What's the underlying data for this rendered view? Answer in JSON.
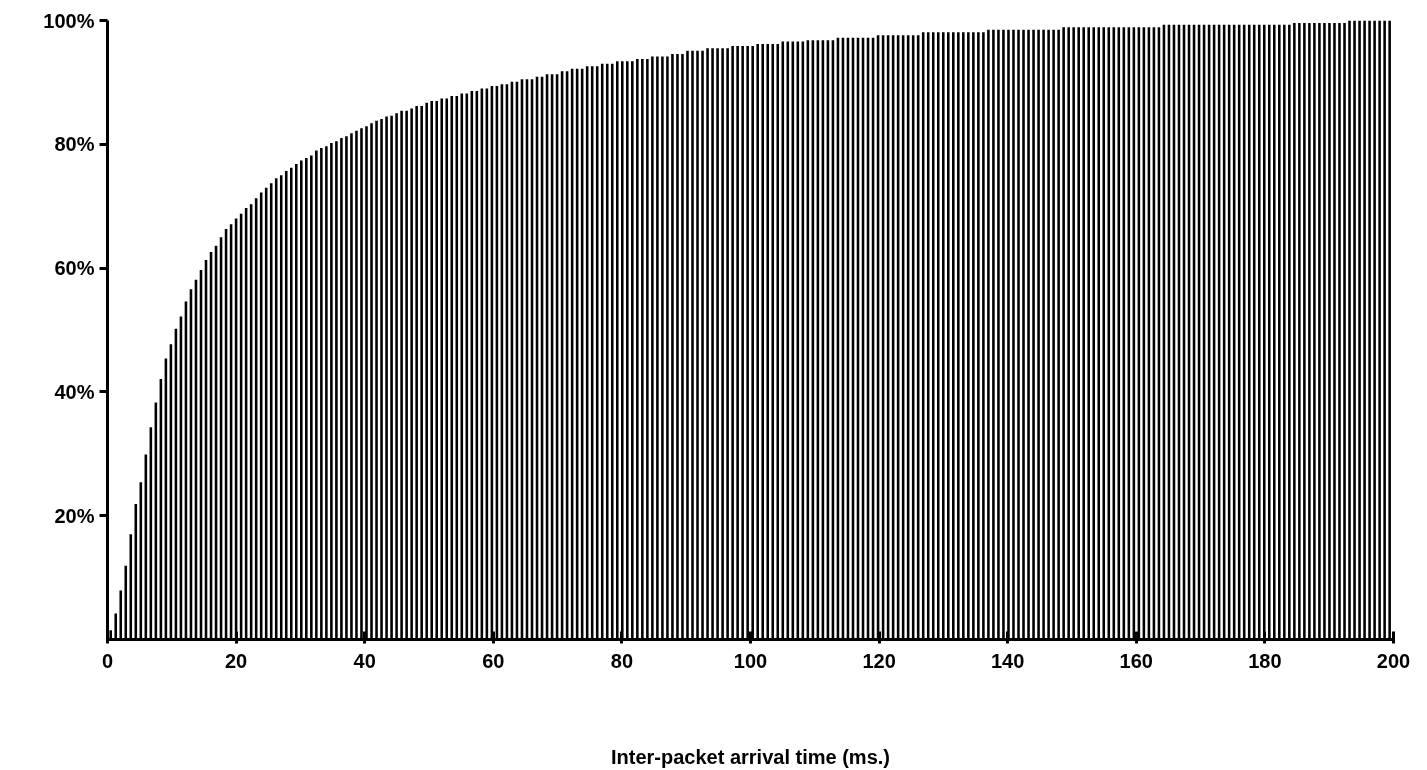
{
  "chart_data": {
    "type": "bar",
    "xlabel": "Inter-packet arrival time (ms.)",
    "color": "#000000",
    "grid": false,
    "xlim": [
      0,
      200
    ],
    "xticks": [
      0,
      20,
      40,
      60,
      80,
      100,
      120,
      140,
      160,
      180,
      200
    ],
    "ylim": [
      0,
      100
    ],
    "yticks": [
      {
        "value": 20,
        "label": "20%"
      },
      {
        "value": 40,
        "label": "40%"
      },
      {
        "value": 60,
        "label": "60%"
      },
      {
        "value": 80,
        "label": "80%"
      },
      {
        "value": 100,
        "label": "100%"
      }
    ],
    "x": [
      0.5,
      1.28,
      2.06,
      2.84,
      3.62,
      4.4,
      5.18,
      5.96,
      6.74,
      7.52,
      8.3,
      9.08,
      9.86,
      10.64,
      11.42,
      12.2,
      12.98,
      13.76,
      14.54,
      15.32,
      16.1,
      16.88,
      17.66,
      18.44,
      19.22,
      20,
      20.78,
      21.56,
      22.34,
      23.12,
      23.9,
      24.68,
      25.46,
      26.24,
      27.02,
      27.8,
      28.58,
      29.36,
      30.14,
      30.92,
      31.7,
      32.48,
      33.26,
      34.04,
      34.82,
      35.6,
      36.38,
      37.16,
      37.94,
      38.72,
      39.5,
      40.28,
      41.06,
      41.84,
      42.62,
      43.4,
      44.18,
      44.96,
      45.74,
      46.52,
      47.3,
      48.08,
      48.86,
      49.64,
      50.42,
      51.2,
      51.98,
      52.76,
      53.54,
      54.32,
      55.1,
      55.88,
      56.66,
      57.44,
      58.22,
      59,
      59.78,
      60.56,
      61.34,
      62.12,
      62.9,
      63.68,
      64.46,
      65.24,
      66.02,
      66.8,
      67.58,
      68.36,
      69.14,
      69.92,
      70.7,
      71.48,
      72.26,
      73.04,
      73.82,
      74.6,
      75.38,
      76.16,
      76.94,
      77.72,
      78.5,
      79.28,
      80.06,
      80.84,
      81.62,
      82.4,
      83.18,
      83.96,
      84.74,
      85.52,
      86.3,
      87.08,
      87.86,
      88.64,
      89.42,
      90.2,
      90.98,
      91.76,
      92.54,
      93.32,
      94.1,
      94.88,
      95.66,
      96.44,
      97.22,
      98,
      98.78,
      99.56,
      100.34,
      101.12,
      101.9,
      102.68,
      103.46,
      104.24,
      105.02,
      105.8,
      106.58,
      107.36,
      108.14,
      108.92,
      109.7,
      110.48,
      111.26,
      112.04,
      112.82,
      113.6,
      114.38,
      115.16,
      115.94,
      116.72,
      117.5,
      118.28,
      119.06,
      119.84,
      120.62,
      121.4,
      122.18,
      122.96,
      123.74,
      124.52,
      125.3,
      126.08,
      126.86,
      127.64,
      128.42,
      129.2,
      129.98,
      130.76,
      131.54,
      132.32,
      133.1,
      133.88,
      134.66,
      135.44,
      136.22,
      137,
      137.78,
      138.56,
      139.34,
      140.12,
      140.9,
      141.68,
      142.46,
      143.24,
      144.02,
      144.8,
      145.58,
      146.36,
      147.14,
      147.92,
      148.7,
      149.48,
      150.26,
      151.04,
      151.82,
      152.6,
      153.38,
      154.16,
      154.94,
      155.72,
      156.5,
      157.28,
      158.06,
      158.84,
      159.62,
      160.4,
      161.18,
      161.96,
      162.74,
      163.52,
      164.3,
      165.08,
      165.86,
      166.64,
      167.42,
      168.2,
      168.98,
      169.76,
      170.54,
      171.32,
      172.1,
      172.88,
      173.66,
      174.44,
      175.22,
      176,
      176.78,
      177.56,
      178.34,
      179.12,
      179.9,
      180.68,
      181.46,
      182.24,
      183.02,
      183.8,
      184.58,
      185.36,
      186.14,
      186.92,
      187.7,
      188.48,
      189.26,
      190.04,
      190.82,
      191.6,
      192.38,
      193.16,
      193.94,
      194.72,
      195.5,
      196.28,
      197.06,
      197.84,
      198.62,
      199.4
    ],
    "values": [
      1.5,
      4.2,
      7.9,
      11.9,
      17.0,
      21.9,
      25.4,
      29.9,
      34.3,
      38.3,
      42.1,
      45.4,
      47.7,
      50.2,
      52.2,
      54.6,
      56.6,
      58.1,
      59.7,
      61.3,
      62.6,
      63.6,
      65.0,
      66.3,
      67.1,
      68.0,
      68.8,
      69.7,
      70.3,
      71.3,
      72.2,
      73.0,
      73.7,
      74.5,
      75.0,
      75.7,
      76.2,
      76.8,
      77.4,
      77.8,
      78.2,
      79.0,
      79.4,
      79.7,
      80.2,
      80.5,
      81.0,
      81.3,
      81.8,
      82.2,
      82.6,
      82.9,
      83.4,
      83.8,
      84.1,
      84.5,
      84.6,
      85.0,
      85.4,
      85.4,
      85.8,
      86.2,
      86.2,
      86.7,
      87.0,
      87.0,
      87.4,
      87.4,
      87.8,
      87.8,
      88.2,
      88.2,
      88.6,
      88.6,
      89.0,
      89.0,
      89.4,
      89.4,
      89.7,
      89.7,
      90.1,
      90.1,
      90.5,
      90.5,
      90.5,
      90.9,
      90.9,
      91.3,
      91.3,
      91.3,
      91.8,
      91.8,
      92.2,
      92.2,
      92.2,
      92.6,
      92.6,
      92.6,
      93.0,
      93.0,
      93.0,
      93.4,
      93.4,
      93.4,
      93.4,
      93.8,
      93.8,
      93.8,
      94.2,
      94.2,
      94.2,
      94.2,
      94.6,
      94.6,
      94.6,
      95.1,
      95.1,
      95.1,
      95.1,
      95.5,
      95.5,
      95.5,
      95.5,
      95.5,
      95.9,
      95.9,
      95.9,
      95.9,
      95.9,
      96.2,
      96.2,
      96.2,
      96.2,
      96.2,
      96.6,
      96.6,
      96.6,
      96.6,
      96.6,
      96.8,
      96.8,
      96.8,
      96.8,
      96.8,
      96.8,
      97.2,
      97.2,
      97.2,
      97.2,
      97.2,
      97.2,
      97.2,
      97.2,
      97.6,
      97.6,
      97.6,
      97.6,
      97.6,
      97.6,
      97.6,
      97.6,
      97.6,
      98.1,
      98.1,
      98.1,
      98.1,
      98.1,
      98.1,
      98.1,
      98.1,
      98.1,
      98.1,
      98.1,
      98.1,
      98.1,
      98.5,
      98.5,
      98.5,
      98.5,
      98.5,
      98.5,
      98.5,
      98.5,
      98.5,
      98.5,
      98.5,
      98.5,
      98.5,
      98.5,
      98.5,
      98.9,
      98.9,
      98.9,
      98.9,
      98.9,
      98.9,
      98.9,
      98.9,
      98.9,
      98.9,
      98.9,
      98.9,
      98.9,
      98.9,
      98.9,
      98.9,
      98.9,
      98.9,
      98.9,
      98.9,
      99.3,
      99.3,
      99.3,
      99.3,
      99.3,
      99.3,
      99.3,
      99.3,
      99.3,
      99.3,
      99.3,
      99.3,
      99.3,
      99.3,
      99.3,
      99.3,
      99.3,
      99.3,
      99.3,
      99.3,
      99.3,
      99.3,
      99.3,
      99.3,
      99.3,
      99.3,
      99.6,
      99.6,
      99.6,
      99.6,
      99.6,
      99.6,
      99.6,
      99.6,
      99.6,
      99.6,
      99.6,
      100,
      100,
      100,
      100,
      100,
      100,
      100,
      100,
      100
    ]
  }
}
